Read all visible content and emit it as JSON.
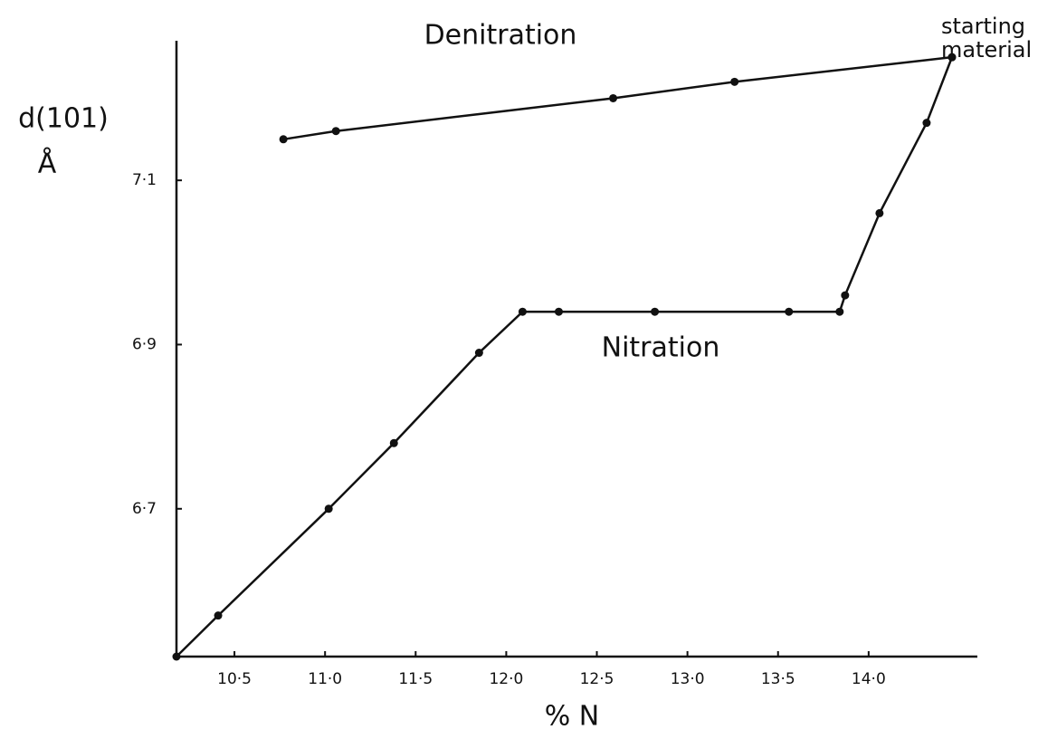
{
  "chart_data": {
    "type": "line",
    "xlabel": "% N",
    "ylabel": "d(101)",
    "yunit": "Å",
    "annotations": [
      "Denitration",
      "Nitration",
      "starting",
      "material"
    ],
    "series": [
      {
        "name": "Nitration",
        "color": "#111111",
        "x": [
          10.18,
          10.41,
          11.02,
          11.38,
          11.85,
          12.09,
          12.29,
          12.82,
          13.56,
          13.84,
          13.87,
          14.06,
          14.32,
          14.46
        ],
        "values": [
          6.52,
          6.57,
          6.7,
          6.78,
          6.89,
          6.94,
          6.94,
          6.94,
          6.94,
          6.94,
          6.96,
          7.06,
          7.17,
          7.25
        ]
      },
      {
        "name": "Denitration",
        "color": "#111111",
        "x": [
          14.46,
          13.26,
          12.59,
          11.06,
          10.77
        ],
        "values": [
          7.25,
          7.22,
          7.2,
          7.16,
          7.15
        ]
      }
    ],
    "xlim": [
      10.18,
      14.6
    ],
    "ylim": [
      6.52,
      7.27
    ],
    "xticks": [
      {
        "value": 10.5,
        "label": "10·5"
      },
      {
        "value": 11.0,
        "label": "11·0"
      },
      {
        "value": 11.5,
        "label": "11·5"
      },
      {
        "value": 12.0,
        "label": "12·0"
      },
      {
        "value": 12.5,
        "label": "12·5"
      },
      {
        "value": 13.0,
        "label": "13·0"
      },
      {
        "value": 13.5,
        "label": "13·5"
      },
      {
        "value": 14.0,
        "label": "14·0"
      }
    ],
    "yticks": [
      {
        "value": 6.7,
        "label": "6·7"
      },
      {
        "value": 6.9,
        "label": "6·9"
      },
      {
        "value": 7.1,
        "label": "7·1"
      }
    ]
  }
}
